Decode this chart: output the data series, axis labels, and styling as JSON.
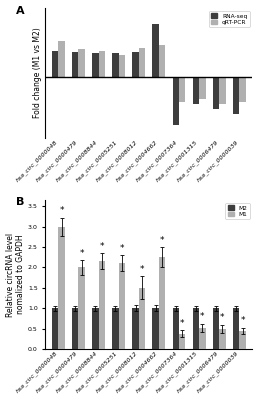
{
  "panel_A": {
    "categories": [
      "hsa_circ_0000048",
      "hsa_circ_0000479",
      "hsa_circ_0008844",
      "hsa_circ_0005251",
      "hsa_circ_0008012",
      "hsa_circ_0004662",
      "hsa_circ_0007364",
      "hsa_circ_0001315",
      "hsa_circ_0006479",
      "hsa_circ_0000039"
    ],
    "rna_seq": [
      1.55,
      1.45,
      1.38,
      1.42,
      1.48,
      3.1,
      -2.75,
      -1.55,
      -1.85,
      -2.15
    ],
    "qrt_pcr": [
      2.1,
      1.65,
      1.5,
      1.28,
      1.7,
      1.85,
      -1.45,
      -1.25,
      -1.55,
      -1.45
    ],
    "rna_color": "#3d3d3d",
    "qrt_color": "#b0b0b0",
    "ylabel": "Fold change (M1 vs M2)",
    "ylim": [
      -3.5,
      4.0
    ]
  },
  "panel_B": {
    "categories": [
      "hsa_circ_0000048",
      "hsa_circ_0000479",
      "hsa_circ_0008844",
      "hsa_circ_0005251",
      "hsa_circ_0008012",
      "hsa_circ_0004662",
      "hsa_circ_0007364",
      "hsa_circ_0001315",
      "hsa_circ_0006479",
      "hsa_circ_0000039"
    ],
    "M2_vals": [
      1.0,
      1.0,
      1.0,
      1.0,
      1.0,
      1.0,
      1.0,
      1.0,
      1.0,
      1.0
    ],
    "M1_vals": [
      3.0,
      2.0,
      2.15,
      2.1,
      1.5,
      2.25,
      0.38,
      0.52,
      0.5,
      0.45
    ],
    "M2_err": [
      0.06,
      0.06,
      0.06,
      0.06,
      0.07,
      0.07,
      0.06,
      0.06,
      0.06,
      0.06
    ],
    "M1_err": [
      0.22,
      0.18,
      0.2,
      0.2,
      0.28,
      0.25,
      0.08,
      0.1,
      0.1,
      0.07
    ],
    "M2_color": "#3d3d3d",
    "M1_color": "#b0b0b0",
    "ylabel": "Relative circRNA level\nnomalized to GAPDH",
    "ylim": [
      0,
      3.65
    ],
    "yticks": [
      0.0,
      0.5,
      1.0,
      1.5,
      2.0,
      2.5,
      3.0,
      3.5
    ],
    "ast_M1": [
      true,
      true,
      true,
      true,
      true,
      true,
      false,
      false,
      false,
      false
    ],
    "ast_M2": [
      false,
      false,
      false,
      false,
      false,
      false,
      true,
      true,
      true,
      true
    ]
  },
  "label_A": "A",
  "label_B": "B",
  "bg_color": "#ffffff",
  "tick_fontsize": 4.5,
  "label_fontsize": 5.5,
  "xlabel_fontsize": 4.5,
  "bar_width": 0.32
}
